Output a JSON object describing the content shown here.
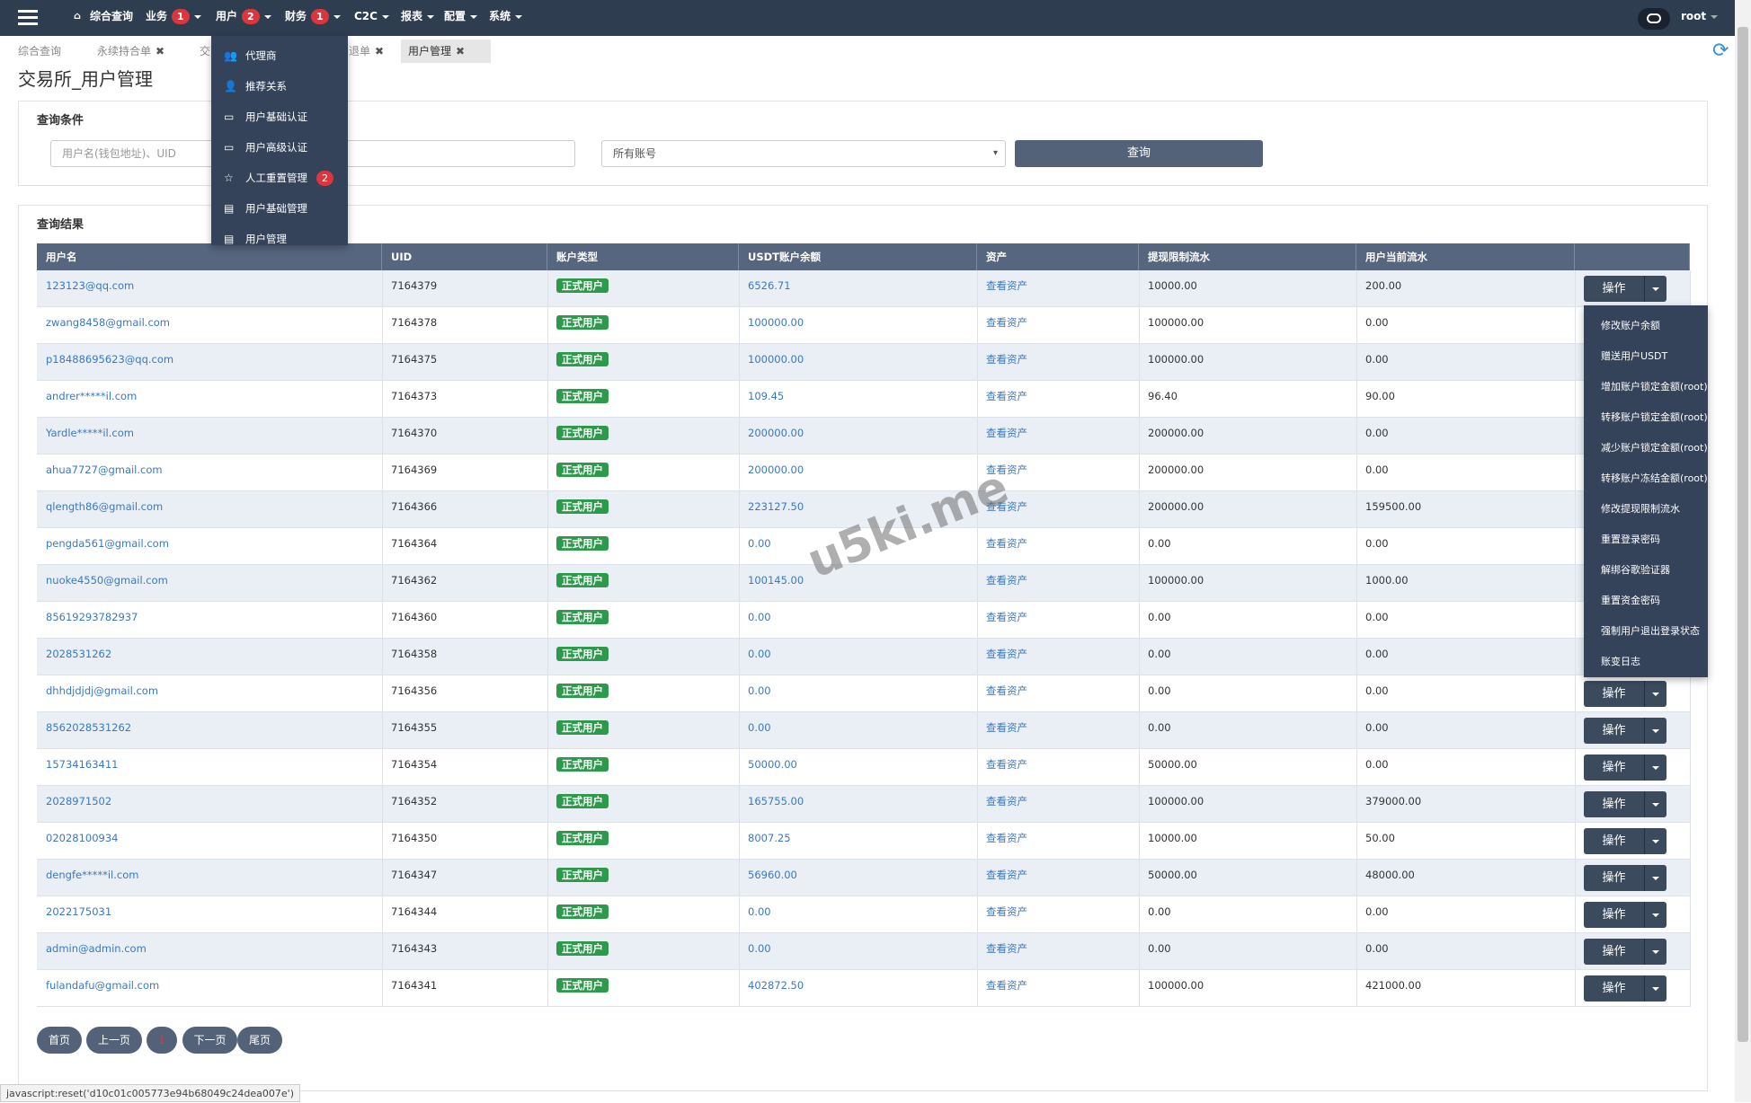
{
  "nav": {
    "items": [
      {
        "label": "综合查询"
      },
      {
        "label": "业务",
        "badge": 1
      },
      {
        "label": "用户",
        "badge": 2
      },
      {
        "label": "财务",
        "badge": 1
      },
      {
        "label": "C2C"
      },
      {
        "label": "报表"
      },
      {
        "label": "配置"
      },
      {
        "label": "系统"
      }
    ],
    "user": "root"
  },
  "tabs": [
    "综合查询",
    "永续持合单",
    "交",
    "退单",
    "用户管理"
  ],
  "page_title": "交易所_用户管理",
  "query": {
    "title": "查询条件",
    "placeholder": "用户名(钱包地址)、UID",
    "select": "所有账号",
    "button": "查询"
  },
  "results": {
    "title": "查询结果",
    "headers": [
      "用户名",
      "UID",
      "账户类型",
      "USDT账户余额",
      "资产",
      "提现限制流水",
      "用户当前流水"
    ],
    "action": "操作",
    "rows": [
      [
        "123123@qq.com",
        "7164379",
        "正式用户",
        "6526.71",
        "查看资产",
        "10000.00",
        "200.00"
      ],
      [
        "zwang8458@gmail.com",
        "7164378",
        "正式用户",
        "100000.00",
        "查看资产",
        "100000.00",
        "0.00"
      ],
      [
        "p18488695623@qq.com",
        "7164375",
        "正式用户",
        "100000.00",
        "查看资产",
        "100000.00",
        "0.00"
      ],
      [
        "andrer*****il.com",
        "7164373",
        "正式用户",
        "109.45",
        "查看资产",
        "96.40",
        "90.00"
      ],
      [
        "Yardle*****il.com",
        "7164370",
        "正式用户",
        "200000.00",
        "查看资产",
        "200000.00",
        "0.00"
      ],
      [
        "ahua7727@gmail.com",
        "7164369",
        "正式用户",
        "200000.00",
        "查看资产",
        "200000.00",
        "0.00"
      ],
      [
        "qlength86@gmail.com",
        "7164366",
        "正式用户",
        "223127.50",
        "查看资产",
        "200000.00",
        "159500.00"
      ],
      [
        "pengda561@gmail.com",
        "7164364",
        "正式用户",
        "0.00",
        "查看资产",
        "0.00",
        "0.00"
      ],
      [
        "nuoke4550@gmail.com",
        "7164362",
        "正式用户",
        "100145.00",
        "查看资产",
        "100000.00",
        "1000.00"
      ],
      [
        "85619293782937",
        "7164360",
        "正式用户",
        "0.00",
        "查看资产",
        "0.00",
        "0.00"
      ],
      [
        "2028531262",
        "7164358",
        "正式用户",
        "0.00",
        "查看资产",
        "0.00",
        "0.00"
      ],
      [
        "dhhdjdjdj@gmail.com",
        "7164356",
        "正式用户",
        "0.00",
        "查看资产",
        "0.00",
        "0.00"
      ],
      [
        "8562028531262",
        "7164355",
        "正式用户",
        "0.00",
        "查看资产",
        "0.00",
        "0.00"
      ],
      [
        "15734163411",
        "7164354",
        "正式用户",
        "50000.00",
        "查看资产",
        "50000.00",
        "0.00"
      ],
      [
        "2028971502",
        "7164352",
        "正式用户",
        "165755.00",
        "查看资产",
        "100000.00",
        "379000.00"
      ],
      [
        "02028100934",
        "7164350",
        "正式用户",
        "8007.25",
        "查看资产",
        "10000.00",
        "50.00"
      ],
      [
        "dengfe*****il.com",
        "7164347",
        "正式用户",
        "56960.00",
        "查看资产",
        "50000.00",
        "48000.00"
      ],
      [
        "2022175031",
        "7164344",
        "正式用户",
        "0.00",
        "查看资产",
        "0.00",
        "0.00"
      ],
      [
        "admin@admin.com",
        "7164343",
        "正式用户",
        "0.00",
        "查看资产",
        "0.00",
        "0.00"
      ],
      [
        "fulandafu@gmail.com",
        "7164341",
        "正式用户",
        "402872.50",
        "查看资产",
        "100000.00",
        "421000.00"
      ]
    ]
  },
  "user_menu": [
    {
      "label": "代理商"
    },
    {
      "label": "推荐关系"
    },
    {
      "label": "用户基础认证"
    },
    {
      "label": "用户高级认证"
    },
    {
      "label": "人工重置管理",
      "badge": 2
    },
    {
      "label": "用户基础管理"
    },
    {
      "label": "用户管理"
    }
  ],
  "action_menu": [
    "修改账户余额",
    "赠送用户USDT",
    "增加账户锁定金额(root)",
    "转移账户锁定金额(root)",
    "减少账户锁定金额(root)",
    "转移账户冻结金额(root)",
    "修改提现限制流水",
    "重置登录密码",
    "解绑谷歌验证器",
    "重置资金密码",
    "强制用户退出登录状态",
    "账变日志"
  ],
  "pagination": [
    "首页",
    "上一页",
    "1",
    "下一页",
    "尾页"
  ],
  "status": "javascript:reset('d10c01c005773e94b68049c24dea007e')",
  "watermark": "u5ki.me"
}
